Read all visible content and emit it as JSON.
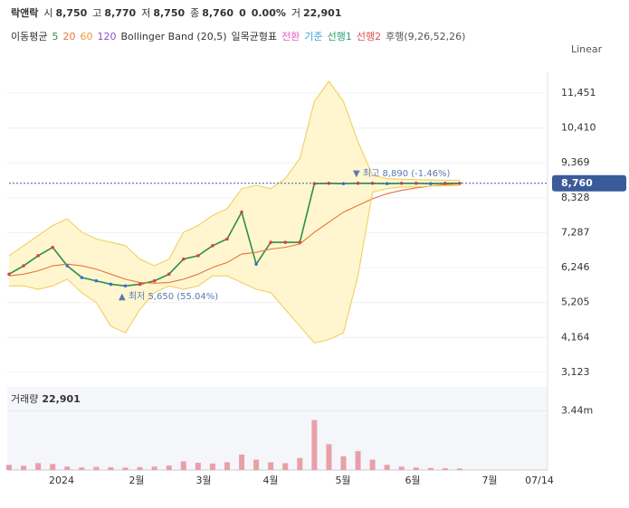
{
  "chart_data": {
    "type": "line",
    "header": {
      "name": "락앤락",
      "open_label": "시",
      "open": "8,750",
      "high_label": "고",
      "high": "8,770",
      "low_label": "저",
      "low": "8,750",
      "close_label": "종",
      "close": "8,760",
      "change": "0",
      "change_pct": "0.00%",
      "volume_label": "거",
      "volume": "22,901"
    },
    "indicators": {
      "ma": "이동평균",
      "ma_periods": [
        "5",
        "20",
        "60",
        "120"
      ],
      "bollinger": "Bollinger Band (20,5)",
      "ichimoku": "일목균형표",
      "ichimoku_items": [
        "전환",
        "기준",
        "선행1",
        "선행2"
      ],
      "lagging": "후행(9,26,52,26)"
    },
    "scale_label": "Linear",
    "annotations": {
      "high": "▼ 최고 8,890 (-1.46%)",
      "low": "▲ 최저 5,650 (55.04%)"
    },
    "last_price_label": "8,760",
    "last_price": 8760,
    "x_labels": [
      "2024",
      "2월",
      "3월",
      "4월",
      "5월",
      "6월",
      "7월",
      "07/14"
    ],
    "ylim": [
      2770,
      11800
    ],
    "yticks": [
      {
        "value": 3123,
        "label": "3,123"
      },
      {
        "value": 4164,
        "label": "4,164"
      },
      {
        "value": 5205,
        "label": "5,205"
      },
      {
        "value": 6246,
        "label": "6,246"
      },
      {
        "value": 7287,
        "label": "7,287"
      },
      {
        "value": 8328,
        "label": "8,328"
      },
      {
        "value": 9369,
        "label": "9,369"
      },
      {
        "value": 10410,
        "label": "10,410"
      },
      {
        "value": 11451,
        "label": "11,451"
      }
    ],
    "series": [
      {
        "name": "종가",
        "color": "#2a8f4a",
        "values": [
          6050,
          6300,
          6600,
          6850,
          6300,
          5950,
          5850,
          5750,
          5700,
          5750,
          5850,
          6050,
          6500,
          6600,
          6900,
          7100,
          7900,
          6350,
          7000,
          7000,
          7000,
          8750,
          8760,
          8750,
          8760,
          8760,
          8750,
          8760,
          8760,
          8750,
          8760,
          8760
        ]
      },
      {
        "name": "20",
        "color": "#e8733a",
        "values": [
          6000,
          6050,
          6150,
          6300,
          6350,
          6300,
          6200,
          6050,
          5900,
          5800,
          5780,
          5800,
          5900,
          6050,
          6250,
          6400,
          6650,
          6700,
          6800,
          6850,
          6950,
          7300,
          7600,
          7900,
          8100,
          8300,
          8450,
          8550,
          8620,
          8680,
          8720,
          8740
        ]
      },
      {
        "name": "bb_upper",
        "color": "#f0d060",
        "values": [
          6600,
          6900,
          7200,
          7500,
          7700,
          7300,
          7100,
          7000,
          6900,
          6500,
          6300,
          6500,
          7300,
          7500,
          7800,
          8000,
          8600,
          8700,
          8600,
          8900,
          9500,
          11200,
          11800,
          11200,
          10000,
          9000,
          8900,
          8880,
          8870,
          8860,
          8850,
          8850
        ]
      },
      {
        "name": "bb_lower",
        "color": "#f0d060",
        "values": [
          5700,
          5700,
          5600,
          5700,
          5900,
          5500,
          5200,
          4500,
          4300,
          5000,
          5500,
          5700,
          5600,
          5700,
          6000,
          6000,
          5800,
          5600,
          5500,
          5000,
          4500,
          4000,
          4100,
          4300,
          6000,
          8500,
          8600,
          8650,
          8650,
          8680,
          8680,
          8690
        ]
      }
    ],
    "volume": {
      "label": "거래량",
      "value": "22,901",
      "color": "#e8a0a8",
      "vlim": [
        0,
        4200000
      ],
      "vticks": [
        {
          "value": 3440000,
          "label": "3.44m"
        }
      ],
      "values": [
        300000,
        250000,
        400000,
        350000,
        200000,
        150000,
        180000,
        160000,
        140000,
        170000,
        200000,
        260000,
        500000,
        420000,
        380000,
        450000,
        900000,
        600000,
        450000,
        400000,
        700000,
        2900000,
        1500000,
        800000,
        1100000,
        600000,
        300000,
        200000,
        150000,
        120000,
        100000,
        90000
      ]
    }
  }
}
